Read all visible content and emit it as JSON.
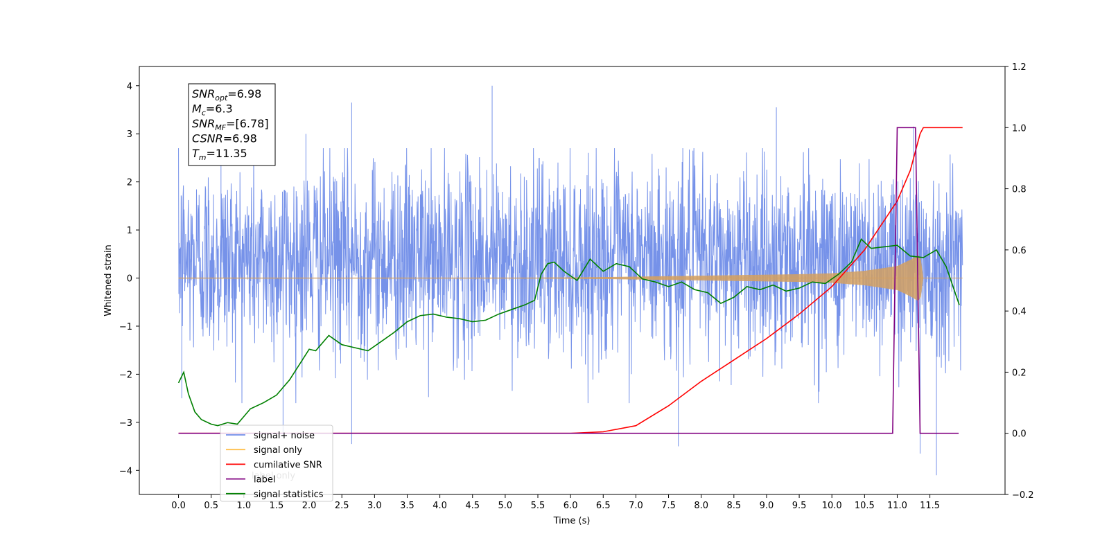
{
  "chart_data": {
    "type": "line",
    "xlabel": "Time (s)",
    "ylabel": "Whitened strain",
    "xlim": [
      -0.6,
      12.65
    ],
    "ylim_left": [
      -4.5,
      4.4
    ],
    "ylim_right": [
      -0.2,
      1.2
    ],
    "x_ticks": [
      "0.0",
      "0.5",
      "1.0",
      "1.5",
      "2.0",
      "2.5",
      "3.0",
      "3.5",
      "4.0",
      "4.5",
      "5.0",
      "5.5",
      "6.0",
      "6.5",
      "7.0",
      "7.5",
      "8.0",
      "8.5",
      "9.0",
      "9.5",
      "10.0",
      "10.5",
      "11.0",
      "11.5"
    ],
    "y_ticks_left": [
      "4",
      "3",
      "2",
      "1",
      "0",
      "−1",
      "−2",
      "−3",
      "−4"
    ],
    "y_ticks_right": [
      "1.2",
      "1.0",
      "0.8",
      "0.6",
      "0.4",
      "0.2",
      "0.0",
      "−0.2"
    ],
    "annotation": [
      {
        "name": "SNR",
        "sub": "opt",
        "value": "=6.98"
      },
      {
        "name": "M",
        "sub": "c",
        "value": "=6.3"
      },
      {
        "name": "SNR",
        "sub": "MF",
        "value": "=[6.78]"
      },
      {
        "name": "CSNR",
        "sub": "",
        "value": "=6.98"
      },
      {
        "name": "T",
        "sub": "m",
        "value": "=11.35"
      }
    ],
    "legend": [
      {
        "label": "signal+ noise",
        "color": "#6f8ce8"
      },
      {
        "label": "signal only",
        "color": "#ffc04d"
      },
      {
        "label": "cumilative SNR",
        "color": "#ff0000"
      },
      {
        "label": "label",
        "color": "#800080"
      },
      {
        "label": "signal statistics",
        "color": "#008000"
      }
    ],
    "legend_hidden_text": "label only",
    "legend_position": "lower-left",
    "series": [
      {
        "name": "signal+ noise",
        "axis": "left",
        "color": "#6f8ce8",
        "x_range": [
          0.0,
          12.0
        ],
        "band_mean": 0.4,
        "band_std": 1.0,
        "spikes": [
          [
            0.65,
            2.6
          ],
          [
            1.95,
            3.0
          ],
          [
            2.65,
            3.65
          ],
          [
            4.8,
            4.0
          ],
          [
            9.15,
            3.55
          ],
          [
            11.25,
            3.15
          ],
          [
            2.65,
            -3.45
          ],
          [
            7.65,
            -3.5
          ],
          [
            11.6,
            -4.1
          ],
          [
            11.35,
            -3.65
          ],
          [
            1.6,
            -3.3
          ],
          [
            0.05,
            -2.5
          ]
        ]
      },
      {
        "name": "signal only",
        "axis": "left",
        "color": "#d4a060",
        "x": [
          0,
          5.5,
          6,
          6.5,
          7,
          7.5,
          8,
          8.5,
          9,
          9.5,
          10,
          10.5,
          11,
          11.2,
          11.35,
          11.4,
          12
        ],
        "amplitude": [
          0.01,
          0.01,
          0.015,
          0.02,
          0.03,
          0.04,
          0.05,
          0.06,
          0.07,
          0.08,
          0.1,
          0.15,
          0.25,
          0.38,
          0.5,
          0.0,
          0.0
        ]
      },
      {
        "name": "cumilative SNR",
        "axis": "right",
        "color": "#ff0000",
        "x": [
          0,
          6,
          6.5,
          7,
          7.5,
          8,
          8.5,
          9,
          9.5,
          10,
          10.5,
          11,
          11.2,
          11.35,
          11.4,
          12
        ],
        "y": [
          0,
          0,
          0.005,
          0.025,
          0.09,
          0.17,
          0.24,
          0.31,
          0.39,
          0.48,
          0.6,
          0.76,
          0.86,
          0.98,
          1.0,
          1.0
        ]
      },
      {
        "name": "label",
        "axis": "right",
        "color": "#800080",
        "x": [
          0,
          10.93,
          11.0,
          11.28,
          11.35,
          11.94
        ],
        "y": [
          0,
          0,
          1.0,
          1.0,
          0,
          0
        ]
      },
      {
        "name": "signal statistics",
        "axis": "right",
        "color": "#008000",
        "x": [
          0,
          0.08,
          0.15,
          0.25,
          0.35,
          0.5,
          0.6,
          0.75,
          0.9,
          1.1,
          1.3,
          1.5,
          1.7,
          1.85,
          2.0,
          2.1,
          2.3,
          2.5,
          2.7,
          2.9,
          3.1,
          3.3,
          3.5,
          3.7,
          3.9,
          4.1,
          4.3,
          4.5,
          4.7,
          4.9,
          5.1,
          5.3,
          5.45,
          5.55,
          5.65,
          5.75,
          5.9,
          6.1,
          6.3,
          6.5,
          6.7,
          6.9,
          7.1,
          7.3,
          7.5,
          7.7,
          7.9,
          8.1,
          8.3,
          8.5,
          8.7,
          8.9,
          9.1,
          9.3,
          9.5,
          9.7,
          9.9,
          10.1,
          10.3,
          10.45,
          10.6,
          10.8,
          11.0,
          11.2,
          11.4,
          11.6,
          11.75,
          11.95
        ],
        "y": [
          0.165,
          0.2,
          0.13,
          0.07,
          0.045,
          0.03,
          0.025,
          0.035,
          0.03,
          0.08,
          0.1,
          0.125,
          0.175,
          0.225,
          0.275,
          0.27,
          0.32,
          0.29,
          0.28,
          0.27,
          0.3,
          0.33,
          0.365,
          0.385,
          0.39,
          0.38,
          0.375,
          0.365,
          0.37,
          0.39,
          0.405,
          0.42,
          0.435,
          0.52,
          0.555,
          0.56,
          0.53,
          0.5,
          0.57,
          0.53,
          0.555,
          0.545,
          0.505,
          0.495,
          0.48,
          0.495,
          0.47,
          0.46,
          0.425,
          0.445,
          0.48,
          0.47,
          0.485,
          0.465,
          0.475,
          0.495,
          0.49,
          0.52,
          0.56,
          0.635,
          0.605,
          0.61,
          0.615,
          0.58,
          0.575,
          0.6,
          0.545,
          0.42
        ]
      }
    ]
  }
}
